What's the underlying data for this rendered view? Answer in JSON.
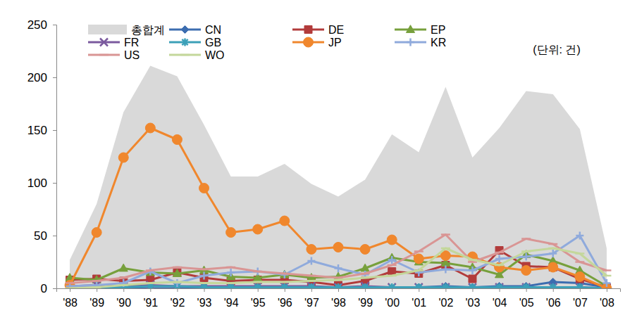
{
  "chart_data": {
    "type": "line",
    "categories": [
      "'88",
      "'89",
      "'90",
      "'91",
      "'92",
      "'93",
      "'94",
      "'95",
      "'96",
      "'97",
      "'98",
      "'99",
      "'00",
      "'01",
      "'02",
      "'03",
      "'04",
      "'05",
      "'06",
      "'07",
      "'08"
    ],
    "series": [
      {
        "name": "총합계",
        "type": "area",
        "color": "#d9d9d9",
        "values": [
          27,
          80,
          167,
          211,
          201,
          155,
          106,
          106,
          118,
          99,
          87,
          103,
          146,
          129,
          191,
          124,
          152,
          187,
          184,
          151,
          38
        ]
      },
      {
        "name": "CN",
        "color": "#3c6db0",
        "marker": "diamond",
        "values": [
          0,
          0,
          0,
          0,
          0,
          0,
          0,
          0,
          0,
          0,
          0,
          0,
          0,
          1,
          2,
          1,
          2,
          2,
          6,
          5,
          1
        ]
      },
      {
        "name": "DE",
        "color": "#b23b3b",
        "marker": "square",
        "values": [
          8,
          9,
          7,
          8,
          15,
          10,
          7,
          8,
          8,
          6,
          3,
          7,
          16,
          14,
          22,
          9,
          36,
          21,
          20,
          9,
          1
        ]
      },
      {
        "name": "EP",
        "color": "#77a03c",
        "marker": "triangle",
        "values": [
          10,
          8,
          19,
          15,
          14,
          17,
          11,
          10,
          13,
          10,
          11,
          19,
          29,
          25,
          24,
          20,
          13,
          32,
          26,
          17,
          2
        ]
      },
      {
        "name": "FR",
        "color": "#7b5a9e",
        "marker": "x",
        "values": [
          2,
          3,
          2,
          3,
          2,
          2,
          2,
          2,
          2,
          2,
          1,
          2,
          1,
          1,
          1,
          1,
          1,
          1,
          1,
          1,
          0
        ]
      },
      {
        "name": "GB",
        "color": "#3ca0b8",
        "marker": "asterisk",
        "values": [
          0,
          0,
          1,
          2,
          2,
          1,
          1,
          1,
          1,
          1,
          1,
          1,
          1,
          1,
          1,
          1,
          1,
          1,
          1,
          1,
          0
        ]
      },
      {
        "name": "JP",
        "color": "#f0872d",
        "marker": "circle",
        "values": [
          3,
          53,
          124,
          152,
          141,
          95,
          53,
          56,
          64,
          37,
          39,
          37,
          46,
          28,
          31,
          30,
          20,
          17,
          20,
          11,
          0
        ]
      },
      {
        "name": "KR",
        "color": "#8faadc",
        "marker": "plus",
        "values": [
          2,
          3,
          5,
          16,
          5,
          12,
          15,
          16,
          13,
          26,
          19,
          13,
          27,
          15,
          18,
          17,
          28,
          30,
          33,
          50,
          5
        ]
      },
      {
        "name": "US",
        "color": "#d99594",
        "marker": "dash",
        "values": [
          5,
          7,
          10,
          17,
          20,
          18,
          20,
          16,
          14,
          12,
          10,
          14,
          22,
          35,
          51,
          25,
          34,
          47,
          42,
          25,
          17
        ]
      },
      {
        "name": "WO",
        "color": "#c4d79b",
        "marker": "dash",
        "values": [
          0,
          1,
          3,
          5,
          6,
          5,
          5,
          6,
          6,
          7,
          8,
          10,
          12,
          17,
          38,
          27,
          22,
          35,
          38,
          33,
          12
        ]
      }
    ],
    "ylim": [
      0,
      250
    ],
    "yticks": [
      0,
      50,
      100,
      150,
      200,
      250
    ],
    "grid": false,
    "legend": "top",
    "annotation": "(단위: 건)"
  }
}
